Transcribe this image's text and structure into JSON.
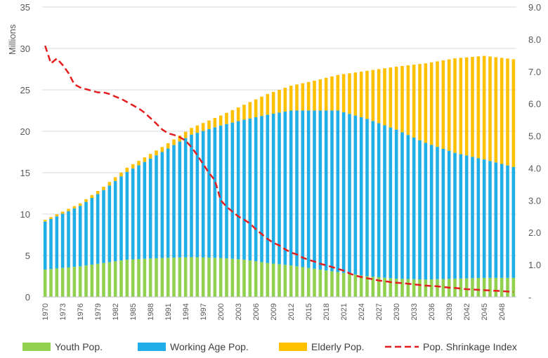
{
  "chart_data": {
    "type": "bar",
    "stacked": true,
    "ylabel": "Millions",
    "ylim": [
      0,
      35
    ],
    "yticks": [
      "0",
      "5",
      "10",
      "15",
      "20",
      "25",
      "30",
      "35"
    ],
    "y2lim": [
      0,
      9
    ],
    "y2ticks": [
      "-",
      "1.0",
      "2.0",
      "3.0",
      "4.0",
      "5.0",
      "6.0",
      "7.0",
      "8.0",
      "9.0"
    ],
    "x_start": 1970,
    "x_end": 2050,
    "xtick_labels": [
      "1970",
      "1973",
      "1976",
      "1979",
      "1982",
      "1985",
      "1988",
      "1991",
      "1994",
      "1997",
      "2000",
      "2003",
      "2006",
      "2009",
      "2012",
      "2015",
      "2018",
      "2021",
      "2024",
      "2027",
      "2030",
      "2033",
      "2036",
      "2039",
      "2042",
      "2045",
      "2048"
    ],
    "grid": true,
    "legend_position": "bottom",
    "colors": {
      "youth": "#92D050",
      "working": "#1FAEE8",
      "elderly": "#FFC000",
      "index": "#E41E20"
    },
    "series": [
      {
        "name": "Youth Pop.",
        "key": "youth",
        "points": [
          [
            1970,
            3.3
          ],
          [
            1976,
            3.7
          ],
          [
            1980,
            4.1
          ],
          [
            1984,
            4.5
          ],
          [
            1990,
            4.7
          ],
          [
            1995,
            4.8
          ],
          [
            2000,
            4.7
          ],
          [
            2004,
            4.5
          ],
          [
            2008,
            4.1
          ],
          [
            2012,
            3.8
          ],
          [
            2016,
            3.4
          ],
          [
            2020,
            3.0
          ],
          [
            2025,
            2.5
          ],
          [
            2030,
            2.2
          ],
          [
            2035,
            2.1
          ],
          [
            2040,
            2.2
          ],
          [
            2045,
            2.3
          ],
          [
            2050,
            2.3
          ]
        ]
      },
      {
        "name": "Working Age Pop.",
        "key": "working",
        "points": [
          [
            1970,
            5.8
          ],
          [
            1976,
            7.3
          ],
          [
            1980,
            8.8
          ],
          [
            1984,
            10.6
          ],
          [
            1990,
            12.8
          ],
          [
            1995,
            14.8
          ],
          [
            2000,
            16.0
          ],
          [
            2004,
            16.9
          ],
          [
            2008,
            17.9
          ],
          [
            2012,
            18.7
          ],
          [
            2016,
            19.1
          ],
          [
            2020,
            19.5
          ],
          [
            2025,
            19.0
          ],
          [
            2030,
            18.0
          ],
          [
            2035,
            16.5
          ],
          [
            2040,
            15.2
          ],
          [
            2045,
            14.3
          ],
          [
            2050,
            13.4
          ]
        ]
      },
      {
        "name": "Elderly Pop.",
        "key": "elderly",
        "points": [
          [
            1970,
            0.2
          ],
          [
            1976,
            0.3
          ],
          [
            1980,
            0.4
          ],
          [
            1984,
            0.5
          ],
          [
            1990,
            0.6
          ],
          [
            1995,
            0.8
          ],
          [
            2000,
            1.2
          ],
          [
            2004,
            1.8
          ],
          [
            2008,
            2.5
          ],
          [
            2012,
            3.0
          ],
          [
            2016,
            3.6
          ],
          [
            2020,
            4.3
          ],
          [
            2025,
            5.8
          ],
          [
            2030,
            7.6
          ],
          [
            2035,
            9.6
          ],
          [
            2040,
            11.4
          ],
          [
            2045,
            12.5
          ],
          [
            2050,
            13.0
          ]
        ]
      },
      {
        "name": "Pop. Shrinkage Index",
        "key": "index",
        "axis": "right",
        "style": "dashed-line",
        "points": [
          [
            1970,
            7.8
          ],
          [
            1971,
            7.25
          ],
          [
            1972,
            7.4
          ],
          [
            1973,
            7.2
          ],
          [
            1974,
            6.95
          ],
          [
            1975,
            6.6
          ],
          [
            1976,
            6.5
          ],
          [
            1977,
            6.45
          ],
          [
            1978,
            6.4
          ],
          [
            1979,
            6.35
          ],
          [
            1980,
            6.35
          ],
          [
            1981,
            6.3
          ],
          [
            1982,
            6.22
          ],
          [
            1983,
            6.15
          ],
          [
            1984,
            6.05
          ],
          [
            1985,
            5.95
          ],
          [
            1986,
            5.85
          ],
          [
            1987,
            5.72
          ],
          [
            1988,
            5.55
          ],
          [
            1989,
            5.38
          ],
          [
            1990,
            5.2
          ],
          [
            1991,
            5.08
          ],
          [
            1992,
            5.03
          ],
          [
            1993,
            4.96
          ],
          [
            1994,
            4.85
          ],
          [
            1995,
            4.65
          ],
          [
            1996,
            4.4
          ],
          [
            1997,
            4.12
          ],
          [
            1998,
            3.85
          ],
          [
            1999,
            3.62
          ],
          [
            2000,
            3.0
          ],
          [
            2001,
            2.8
          ],
          [
            2002,
            2.65
          ],
          [
            2003,
            2.5
          ],
          [
            2004,
            2.4
          ],
          [
            2005,
            2.28
          ],
          [
            2006,
            2.1
          ],
          [
            2007,
            1.95
          ],
          [
            2008,
            1.8
          ],
          [
            2009,
            1.68
          ],
          [
            2010,
            1.6
          ],
          [
            2011,
            1.48
          ],
          [
            2012,
            1.38
          ],
          [
            2013,
            1.32
          ],
          [
            2014,
            1.22
          ],
          [
            2015,
            1.15
          ],
          [
            2016,
            1.1
          ],
          [
            2017,
            1.03
          ],
          [
            2018,
            0.98
          ],
          [
            2019,
            0.93
          ],
          [
            2020,
            0.87
          ],
          [
            2021,
            0.82
          ],
          [
            2022,
            0.73
          ],
          [
            2023,
            0.66
          ],
          [
            2024,
            0.62
          ],
          [
            2025,
            0.58
          ],
          [
            2026,
            0.55
          ],
          [
            2027,
            0.51
          ],
          [
            2028,
            0.49
          ],
          [
            2029,
            0.46
          ],
          [
            2030,
            0.44
          ],
          [
            2031,
            0.43
          ],
          [
            2032,
            0.41
          ],
          [
            2033,
            0.39
          ],
          [
            2034,
            0.37
          ],
          [
            2035,
            0.35
          ],
          [
            2036,
            0.34
          ],
          [
            2037,
            0.33
          ],
          [
            2038,
            0.31
          ],
          [
            2039,
            0.29
          ],
          [
            2040,
            0.28
          ],
          [
            2041,
            0.26
          ],
          [
            2042,
            0.24
          ],
          [
            2043,
            0.23
          ],
          [
            2044,
            0.22
          ],
          [
            2045,
            0.21
          ],
          [
            2046,
            0.2
          ],
          [
            2047,
            0.19
          ],
          [
            2048,
            0.18
          ],
          [
            2049,
            0.17
          ],
          [
            2050,
            0.15
          ]
        ]
      }
    ]
  }
}
